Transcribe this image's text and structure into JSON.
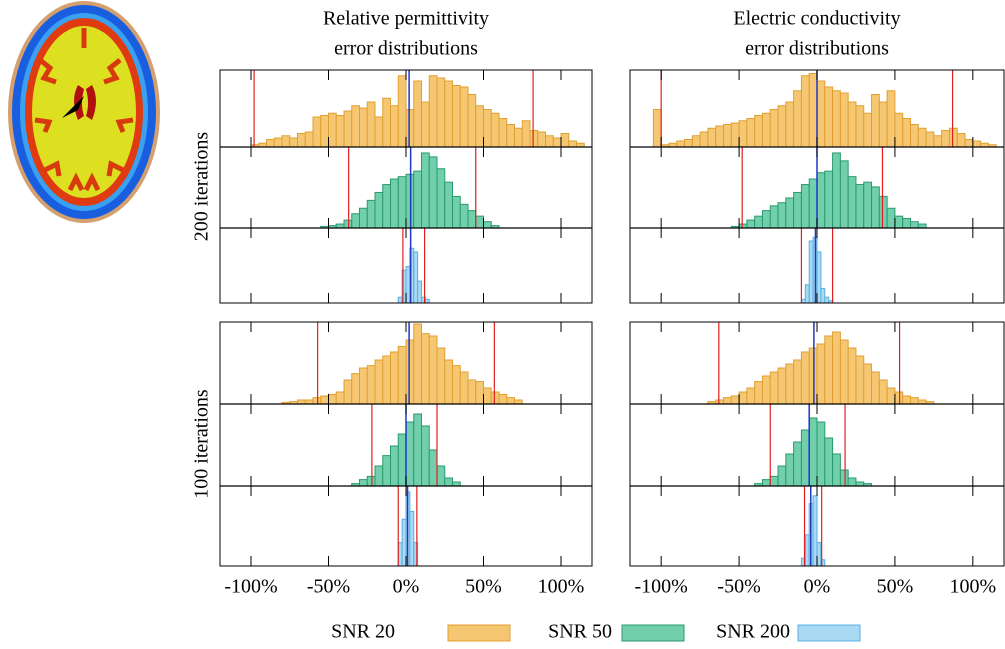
{
  "chart_data": [
    {
      "type": "histogram",
      "title": [
        "Relative permittivity",
        "error distributions"
      ],
      "xlim": [
        -120,
        120
      ],
      "ylim": [
        0,
        100
      ],
      "xticks": [
        {
          "value": -100,
          "label": "-100%"
        },
        {
          "value": -50,
          "label": "-50%"
        },
        {
          "value": 0,
          "label": "0%"
        },
        {
          "value": 50,
          "label": "50%"
        },
        {
          "value": 100,
          "label": "100%"
        }
      ],
      "groups": [
        [
          {
            "bins": [
              -100,
              -95,
              -90,
              -85,
              -80,
              -75,
              -70,
              -65,
              -60,
              -55,
              -50,
              -45,
              -40,
              -35,
              -30,
              -25,
              -20,
              -15,
              -10,
              -5,
              0,
              5,
              10,
              15,
              20,
              25,
              30,
              35,
              40,
              45,
              50,
              55,
              60,
              65,
              70,
              75,
              80,
              85,
              90,
              95,
              100,
              105,
              110,
              115
            ],
            "values": [
              3,
              5,
              10,
              12,
              15,
              12,
              18,
              20,
              40,
              42,
              45,
              42,
              48,
              55,
              52,
              60,
              40,
              65,
              55,
              95,
              50,
              88,
              60,
              95,
              92,
              88,
              82,
              80,
              70,
              55,
              50,
              45,
              38,
              30,
              25,
              35,
              22,
              20,
              15,
              12,
              18,
              8,
              5
            ],
            "lines": [
              -98,
              82
            ],
            "mean": 2
          },
          {
            "bins": [
              -55,
              -50,
              -45,
              -40,
              -35,
              -30,
              -25,
              -20,
              -15,
              -10,
              -5,
              0,
              5,
              10,
              15,
              20,
              25,
              30,
              35,
              40,
              45,
              50,
              55,
              60
            ],
            "values": [
              2,
              3,
              5,
              10,
              18,
              25,
              35,
              45,
              55,
              62,
              65,
              68,
              72,
              95,
              90,
              75,
              58,
              40,
              30,
              22,
              15,
              8,
              3
            ],
            "lines": [
              -37,
              45
            ],
            "mean": 3
          },
          {
            "bins": [
              -5,
              -2.5,
              0,
              2.5,
              5,
              7.5,
              10,
              12.5,
              15
            ],
            "values": [
              8,
              45,
              50,
              75,
              70,
              30,
              8,
              5
            ],
            "lines": [
              -2,
              12
            ],
            "mean": 3
          }
        ],
        [
          {
            "bins": [
              -80,
              -75,
              -70,
              -65,
              -60,
              -55,
              -50,
              -45,
              -40,
              -35,
              -30,
              -25,
              -20,
              -15,
              -10,
              -5,
              0,
              5,
              10,
              15,
              20,
              25,
              30,
              35,
              40,
              45,
              50,
              55,
              60,
              65,
              70,
              75
            ],
            "values": [
              2,
              3,
              5,
              5,
              8,
              10,
              12,
              15,
              30,
              38,
              45,
              48,
              55,
              60,
              65,
              72,
              80,
              100,
              88,
              85,
              70,
              55,
              48,
              40,
              30,
              28,
              20,
              15,
              12,
              8,
              5
            ],
            "lines": [
              -57,
              57
            ],
            "mean": 2
          },
          {
            "bins": [
              -35,
              -30,
              -25,
              -20,
              -15,
              -10,
              -5,
              0,
              5,
              10,
              15,
              20,
              25,
              30,
              35
            ],
            "values": [
              3,
              8,
              12,
              25,
              38,
              50,
              65,
              80,
              90,
              75,
              45,
              25,
              10,
              5
            ],
            "lines": [
              -22,
              20
            ],
            "mean": 0
          },
          {
            "bins": [
              -5,
              -2.5,
              0,
              2.5,
              5,
              7.5
            ],
            "values": [
              30,
              60,
              95,
              70,
              30
            ],
            "lines": [
              -5,
              7
            ],
            "mean": 1
          }
        ]
      ]
    },
    {
      "type": "histogram",
      "title": [
        "Electric conductivity",
        "error distributions"
      ],
      "xlim": [
        -120,
        120
      ],
      "ylim": [
        0,
        100
      ],
      "xticks": [
        {
          "value": -100,
          "label": "-100%"
        },
        {
          "value": -50,
          "label": "-50%"
        },
        {
          "value": 0,
          "label": "0%"
        },
        {
          "value": 50,
          "label": "50%"
        },
        {
          "value": 100,
          "label": "100%"
        }
      ],
      "groups": [
        [
          {
            "bins": [
              -105,
              -100,
              -95,
              -90,
              -85,
              -80,
              -75,
              -70,
              -65,
              -60,
              -55,
              -50,
              -45,
              -40,
              -35,
              -30,
              -25,
              -20,
              -15,
              -10,
              -5,
              0,
              5,
              10,
              15,
              20,
              25,
              30,
              35,
              40,
              45,
              50,
              55,
              60,
              65,
              70,
              75,
              80,
              85,
              90,
              95,
              100,
              105,
              110,
              115
            ],
            "values": [
              50,
              3,
              5,
              8,
              10,
              15,
              20,
              25,
              28,
              30,
              32,
              35,
              38,
              42,
              45,
              50,
              55,
              60,
              75,
              95,
              98,
              88,
              80,
              75,
              72,
              60,
              55,
              45,
              70,
              60,
              75,
              45,
              38,
              30,
              25,
              20,
              15,
              22,
              25,
              18,
              10,
              8,
              5,
              3
            ],
            "lines": [
              -100,
              87
            ],
            "mean": 0
          },
          {
            "bins": [
              -55,
              -50,
              -45,
              -40,
              -35,
              -30,
              -25,
              -20,
              -15,
              -10,
              -5,
              0,
              5,
              10,
              15,
              20,
              25,
              30,
              35,
              40,
              45,
              50,
              55,
              60,
              65,
              70
            ],
            "values": [
              2,
              5,
              10,
              15,
              22,
              28,
              32,
              38,
              45,
              55,
              62,
              70,
              72,
              95,
              85,
              65,
              55,
              58,
              52,
              40,
              25,
              15,
              12,
              8,
              5
            ],
            "lines": [
              -48,
              42
            ],
            "mean": 0
          },
          {
            "bins": [
              -10,
              -7.5,
              -5,
              -2.5,
              0,
              2.5,
              5,
              7.5,
              10
            ],
            "values": [
              5,
              25,
              85,
              90,
              70,
              20,
              8,
              3
            ],
            "lines": [
              -10,
              10
            ],
            "mean": -1
          }
        ],
        [
          {
            "bins": [
              -70,
              -65,
              -60,
              -55,
              -50,
              -45,
              -40,
              -35,
              -30,
              -25,
              -20,
              -15,
              -10,
              -5,
              0,
              5,
              10,
              15,
              20,
              25,
              30,
              35,
              40,
              45,
              50,
              55,
              60,
              65,
              70,
              75
            ],
            "values": [
              3,
              5,
              8,
              10,
              15,
              20,
              28,
              35,
              40,
              45,
              50,
              55,
              65,
              70,
              75,
              85,
              90,
              80,
              70,
              60,
              50,
              40,
              30,
              20,
              15,
              10,
              8,
              5,
              3
            ],
            "lines": [
              -63,
              53
            ],
            "mean": -2
          },
          {
            "bins": [
              -40,
              -35,
              -30,
              -25,
              -20,
              -15,
              -10,
              -5,
              0,
              5,
              10,
              15,
              20,
              25,
              30,
              35
            ],
            "values": [
              3,
              8,
              12,
              25,
              40,
              55,
              70,
              85,
              80,
              60,
              40,
              20,
              10,
              5,
              3
            ],
            "lines": [
              -30,
              18
            ],
            "mean": -5
          },
          {
            "bins": [
              -10,
              -7.5,
              -5,
              -2.5,
              0,
              2.5,
              5
            ],
            "values": [
              10,
              40,
              80,
              90,
              30,
              8
            ],
            "lines": [
              -8,
              3
            ],
            "mean": -4
          }
        ]
      ]
    }
  ],
  "row_labels": [
    "200 iterations",
    "100 iterations"
  ],
  "legend": [
    {
      "name": "SNR 20",
      "color": "#f6c772"
    },
    {
      "name": "SNR 50",
      "color": "#72cfab"
    },
    {
      "name": "SNR 200",
      "color": "#a9d9f3"
    }
  ]
}
